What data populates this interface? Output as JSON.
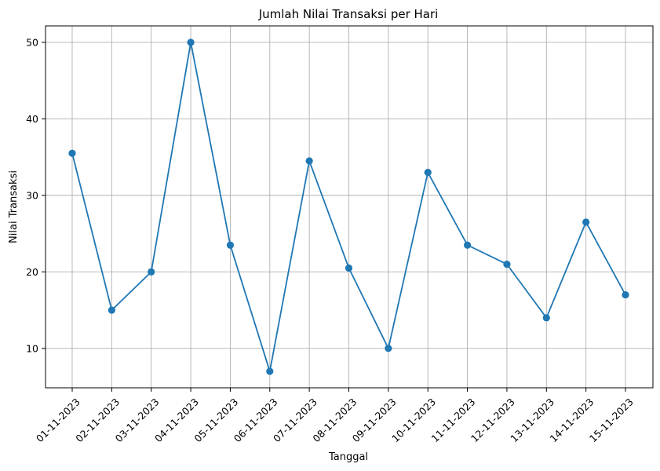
{
  "chart_data": {
    "type": "line",
    "title": "Jumlah Nilai Transaksi per Hari",
    "xlabel": "Tanggal",
    "ylabel": "Nilai Transaksi",
    "categories": [
      "01-11-2023",
      "02-11-2023",
      "03-11-2023",
      "04-11-2023",
      "05-11-2023",
      "06-11-2023",
      "07-11-2023",
      "08-11-2023",
      "09-11-2023",
      "10-11-2023",
      "11-11-2023",
      "12-11-2023",
      "13-11-2023",
      "14-11-2023",
      "15-11-2023"
    ],
    "series": [
      {
        "values": [
          35.5,
          15,
          20,
          50,
          23.5,
          7,
          34.5,
          20.5,
          10,
          33,
          23.5,
          21,
          14,
          26.5,
          17
        ],
        "color": "#1f77b4",
        "marker": "circle"
      }
    ],
    "ylim": [
      4.85,
      52.15
    ],
    "yticks": [
      10,
      20,
      30,
      40,
      50
    ],
    "grid": true,
    "xtick_rotation": 45
  }
}
